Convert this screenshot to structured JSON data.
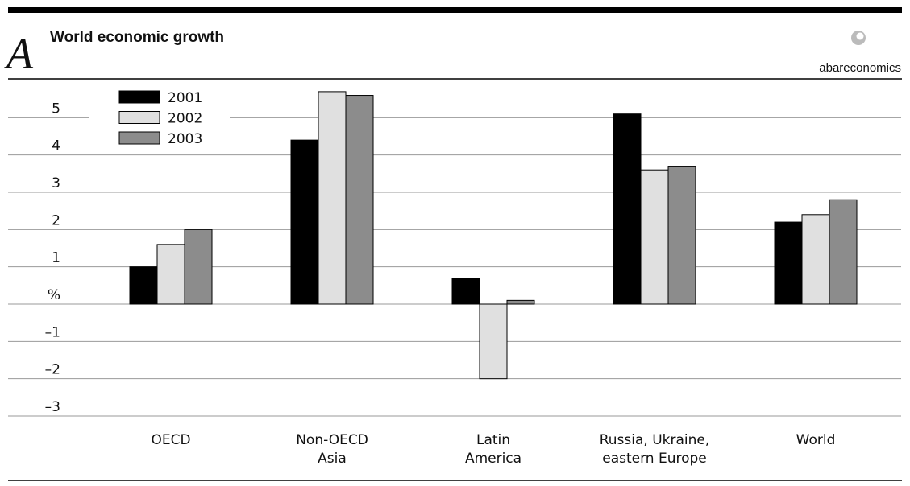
{
  "chart_data": {
    "type": "bar",
    "panel_label": "A",
    "title": "World economic growth",
    "logo_text": "abareconomics",
    "categories": [
      "OECD",
      "Non-OECD\nAsia",
      "Latin\nAmerica",
      "Russia, Ukraine,\neastern Europe",
      "World"
    ],
    "series": [
      {
        "name": "2001",
        "color": "#000000",
        "values": [
          1.0,
          4.4,
          0.7,
          5.1,
          2.2
        ]
      },
      {
        "name": "2002",
        "color": "#e0e0e0",
        "values": [
          1.6,
          5.7,
          -2.0,
          3.6,
          2.4
        ]
      },
      {
        "name": "2003",
        "color": "#8c8c8c",
        "values": [
          2.0,
          5.6,
          0.1,
          3.7,
          2.8
        ]
      }
    ],
    "ylim": [
      -3,
      6
    ],
    "yticks": [
      {
        "value": -3,
        "label": "–3"
      },
      {
        "value": -2,
        "label": "–2"
      },
      {
        "value": -1,
        "label": "–1"
      },
      {
        "value": 0,
        "label": "%"
      },
      1,
      2,
      3,
      4,
      5
    ],
    "grid": true,
    "legend": "upper left"
  }
}
